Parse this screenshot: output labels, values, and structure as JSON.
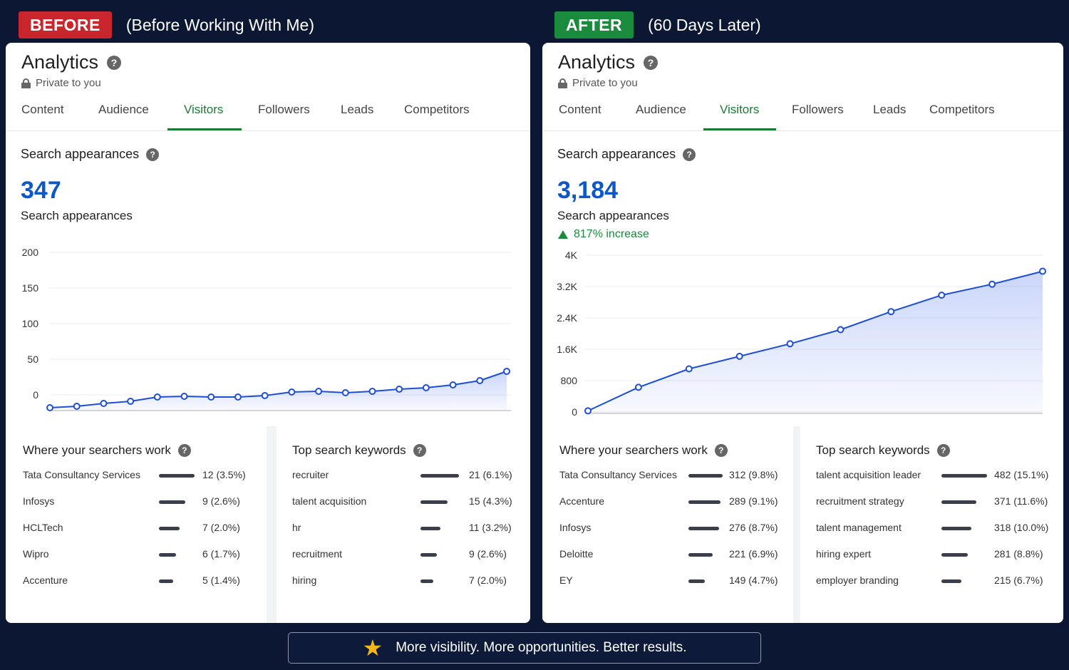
{
  "before": {
    "badge": "BEFORE",
    "caption": "(Before Working With Me)",
    "title": "Analytics",
    "privacy": "Private to you",
    "tabs": [
      "Content",
      "Audience",
      "Visitors",
      "Followers",
      "Leads",
      "Competitors"
    ],
    "active_tab": "Visitors",
    "section_title": "Search appearances",
    "big_number": "347",
    "big_label": "Search appearances",
    "searchers_title": "Where your searchers work",
    "searchers": [
      {
        "name": "Tata Consultancy Services",
        "value": "12 (3.5%)",
        "share": 3.5
      },
      {
        "name": "Infosys",
        "value": "9 (2.6%)",
        "share": 2.6
      },
      {
        "name": "HCLTech",
        "value": "7 (2.0%)",
        "share": 2.0
      },
      {
        "name": "Wipro",
        "value": "6 (1.7%)",
        "share": 1.7
      },
      {
        "name": "Accenture",
        "value": "5 (1.4%)",
        "share": 1.4
      }
    ],
    "keywords_title": "Top search keywords",
    "keywords": [
      {
        "name": "recruiter",
        "value": "21 (6.1%)",
        "share": 6.1
      },
      {
        "name": "talent acquisition",
        "value": "15 (4.3%)",
        "share": 4.3
      },
      {
        "name": "hr",
        "value": "11 (3.2%)",
        "share": 3.2
      },
      {
        "name": "recruitment",
        "value": "9 (2.6%)",
        "share": 2.6
      },
      {
        "name": "hiring",
        "value": "7 (2.0%)",
        "share": 2.0
      }
    ]
  },
  "after": {
    "badge": "AFTER",
    "caption": "(60 Days Later)",
    "title": "Analytics",
    "privacy": "Private to you",
    "tabs": [
      "Content",
      "Audience",
      "Visitors",
      "Followers",
      "Leads",
      "Competitors"
    ],
    "active_tab": "Visitors",
    "section_title": "Search appearances",
    "big_number": "3,184",
    "big_label": "Search appearances",
    "increase": "817% increase",
    "searchers_title": "Where your searchers work",
    "searchers": [
      {
        "name": "Tata Consultancy Services",
        "value": "312 (9.8%)",
        "share": 9.8
      },
      {
        "name": "Accenture",
        "value": "289 (9.1%)",
        "share": 9.1
      },
      {
        "name": "Infosys",
        "value": "276 (8.7%)",
        "share": 8.7
      },
      {
        "name": "Deloitte",
        "value": "221 (6.9%)",
        "share": 6.9
      },
      {
        "name": "EY",
        "value": "149 (4.7%)",
        "share": 4.7
      }
    ],
    "keywords_title": "Top search keywords",
    "keywords": [
      {
        "name": "talent acquisition leader",
        "value": "482 (15.1%)",
        "share": 15.1
      },
      {
        "name": "recruitment strategy",
        "value": "371 (11.6%)",
        "share": 11.6
      },
      {
        "name": "talent management",
        "value": "318 (10.0%)",
        "share": 10.0
      },
      {
        "name": "hiring expert",
        "value": "281 (8.8%)",
        "share": 8.8
      },
      {
        "name": "employer branding",
        "value": "215 (6.7%)",
        "share": 6.7
      }
    ]
  },
  "footer": {
    "text": "More visibility. More opportunities. Better results."
  },
  "colors": {
    "line": "#1d4ed8",
    "accent_green": "#1a7a34",
    "before_badge": "#c8262c",
    "after_badge": "#1a8a3c",
    "number_blue": "#0a58ca"
  },
  "chart_data": [
    {
      "type": "area",
      "series": [
        {
          "values": [
            -18,
            -16,
            -12,
            -9,
            -3,
            -2,
            -3,
            -3,
            -1,
            4,
            5,
            3,
            5,
            8,
            10,
            14,
            20,
            33
          ]
        }
      ],
      "y_ticks": [
        "200",
        "150",
        "100",
        "50",
        "0"
      ],
      "ylim": [
        -22,
        200
      ],
      "grid": true
    },
    {
      "type": "area",
      "series": [
        {
          "values": [
            30,
            630,
            1100,
            1420,
            1740,
            2100,
            2560,
            2980,
            3260,
            3590
          ]
        }
      ],
      "y_ticks": [
        "4K",
        "3.2K",
        "2.4K",
        "1.6K",
        "800",
        "0"
      ],
      "ylim": [
        0,
        4000
      ],
      "grid": true
    }
  ]
}
